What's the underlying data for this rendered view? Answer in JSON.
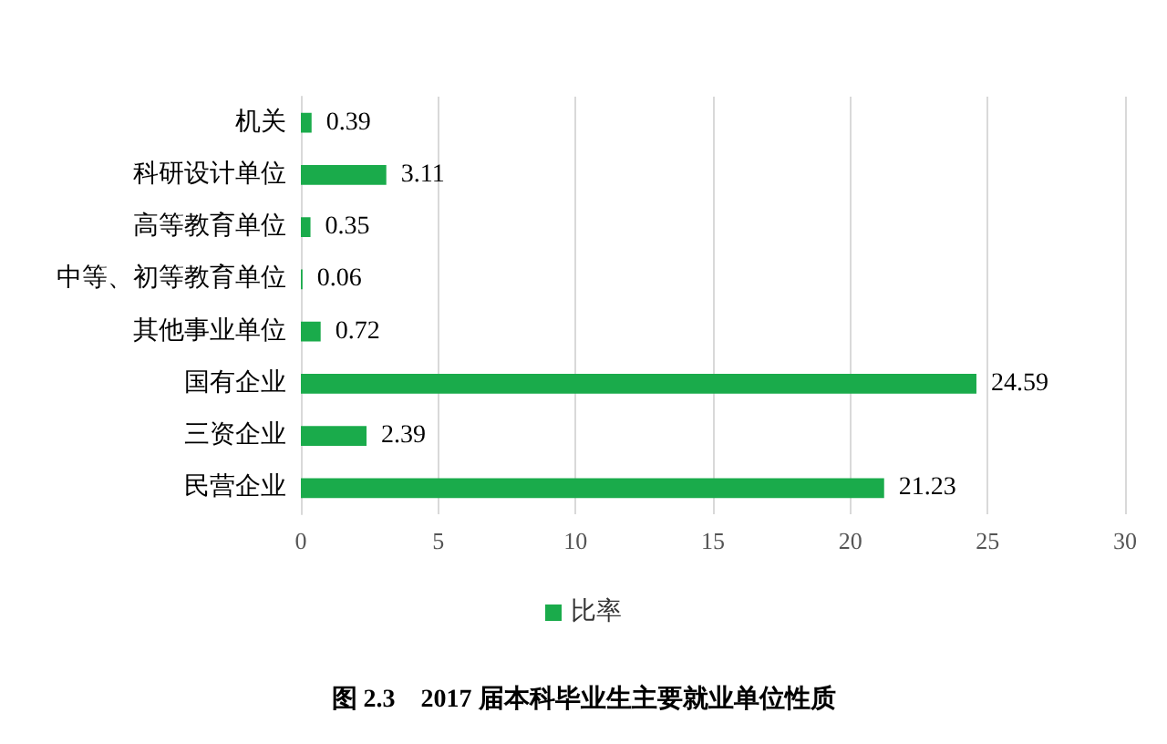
{
  "chart_data": {
    "type": "bar",
    "orientation": "horizontal",
    "title": "图 2.3　2017 届本科毕业生主要就业单位性质",
    "categories": [
      "机关",
      "科研设计单位",
      "高等教育单位",
      "中等、初等教育单位",
      "其他事业单位",
      "国有企业",
      "三资企业",
      "民营企业"
    ],
    "series": [
      {
        "name": "比率",
        "color": "#1aab4b",
        "values": [
          0.39,
          3.11,
          0.35,
          0.06,
          0.72,
          24.59,
          2.39,
          21.23
        ]
      }
    ],
    "xlim": [
      0,
      30
    ],
    "xticks": [
      0,
      5,
      10,
      15,
      20,
      25,
      30
    ],
    "grid": "x",
    "legend": "bottom",
    "data_labels": true
  }
}
